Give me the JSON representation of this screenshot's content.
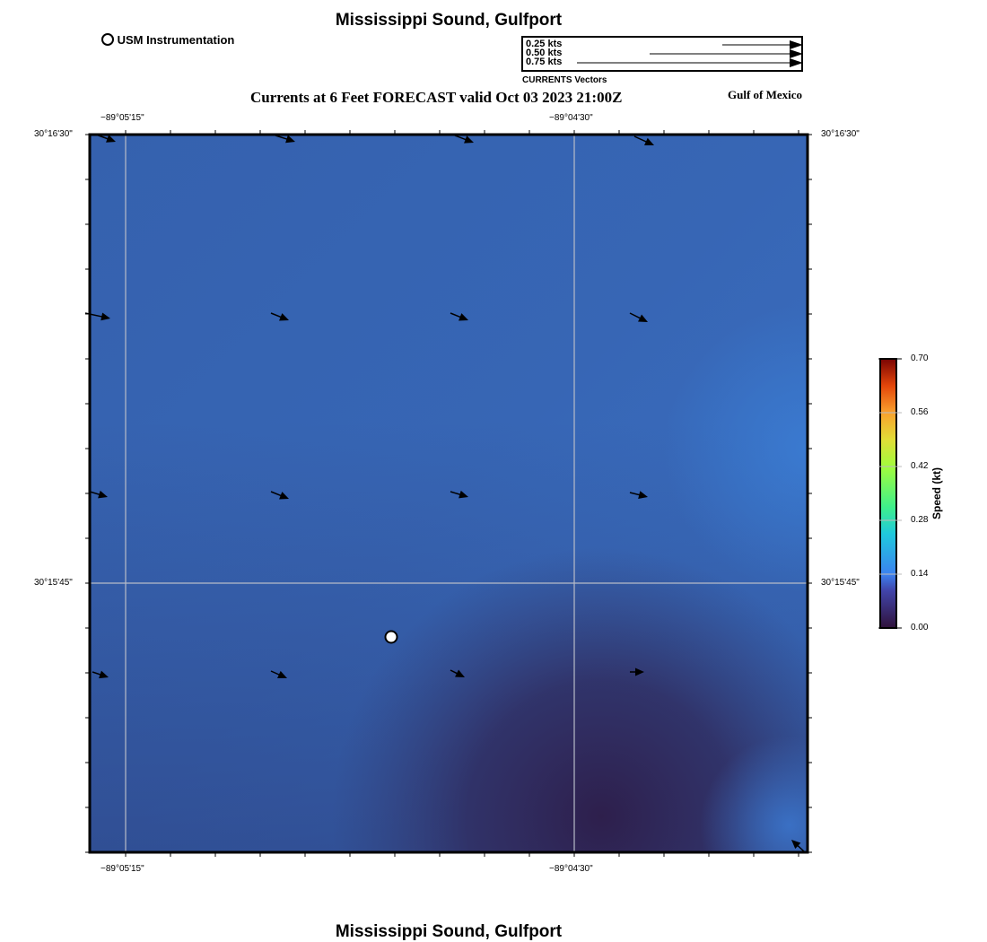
{
  "title": "Mississippi Sound, Gulfport",
  "footer_title": "Mississippi Sound, Gulfport",
  "subtitle": "Currents at 6 Feet FORECAST valid Oct 03 2023 21:00Z",
  "region": "Gulf of Mexico",
  "legend_marker": "USM Instrumentation",
  "vector_legend": {
    "items": [
      "0.25 kts",
      "0.50 kts",
      "0.75 kts"
    ],
    "caption": "CURRENTS Vectors"
  },
  "axes": {
    "top": [
      "−89°05'15\"",
      "−89°04'30\""
    ],
    "bottom": [
      "−89°05'15\"",
      "−89°04'30\""
    ],
    "left": [
      "30°16'30\"",
      "30°15'45\""
    ],
    "right": [
      "30°16'30\"",
      "30°15'45\""
    ]
  },
  "colorbar": {
    "label": "Speed (kt)",
    "ticks": [
      "0.70",
      "0.56",
      "0.42",
      "0.28",
      "0.14",
      "0.00"
    ],
    "range": [
      0,
      0.7
    ]
  },
  "colors": {
    "ocean": "#3766b5",
    "slow": "#2e2350",
    "fast": "#7a0403"
  }
}
